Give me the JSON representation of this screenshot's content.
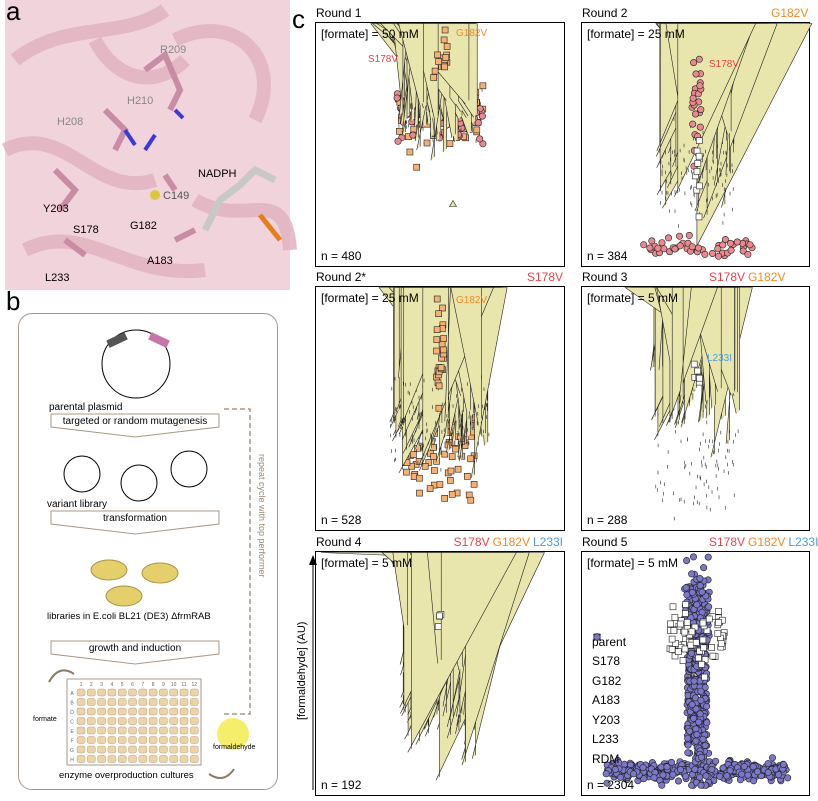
{
  "panels": {
    "a": "a",
    "b": "b",
    "c": "c"
  },
  "panel_a": {
    "residues": [
      "R209",
      "H210",
      "H208",
      "C149",
      "NADPH",
      "Y203",
      "S178",
      "G182",
      "A183",
      "L233"
    ]
  },
  "panel_b": {
    "parental_plasmid": "parental plasmid",
    "step1": "targeted or random mutagenesis",
    "variant_library": "variant library",
    "step2": "transformation",
    "libraries": "libraries in E.coli BL21 (DE3) ΔfrmRAB",
    "step3": "growth and induction",
    "formate": "formate",
    "formaldehyde": "formaldehyde",
    "cultures": "enzyme overproduction cultures",
    "repeat": "repeat cycle with top performer",
    "plate_cols": [
      "1",
      "2",
      "3",
      "4",
      "5",
      "6",
      "7",
      "8",
      "9",
      "10",
      "11",
      "12"
    ],
    "plate_rows": [
      "A",
      "B",
      "D",
      "C",
      "E",
      "F",
      "G",
      "H"
    ]
  },
  "chart_data": {
    "type": "scatter",
    "ylabel": "[formaldehyde] (AU)",
    "groups": [
      {
        "name": "parent",
        "marker": "square",
        "color": "#ffffff"
      },
      {
        "name": "S178",
        "marker": "circle",
        "color": "#e8898e"
      },
      {
        "name": "G182",
        "marker": "square",
        "color": "#f5b072"
      },
      {
        "name": "A183",
        "marker": "triangle-up",
        "color": "#e9e6ad"
      },
      {
        "name": "Y203",
        "marker": "triangle-down",
        "color": "#8fd690"
      },
      {
        "name": "L233",
        "marker": "diamond",
        "color": "#7fa6d9"
      },
      {
        "name": "RDM",
        "marker": "circle",
        "color": "#7b77c9"
      }
    ],
    "legend_labels": [
      "parent",
      "S178",
      "G182",
      "A183",
      "Y203",
      "L233",
      "RDM"
    ],
    "rounds": [
      {
        "title": "Round 1",
        "condition": "[formate] = 50 mM",
        "n_label": "n = 480",
        "header": [],
        "annotations": [
          {
            "text": "G182V",
            "color": "#f08a24"
          },
          {
            "text": "S178V",
            "color": "#e8424a"
          }
        ],
        "clusters": [
          [
            "G182",
            60,
            0.62,
            0.08,
            0.35
          ],
          [
            "S178",
            70,
            0.6,
            0.06,
            0.35
          ],
          [
            "L233",
            130,
            0.63,
            0.05,
            0.34
          ],
          [
            "Y203",
            100,
            0.63,
            0.05,
            0.3
          ],
          [
            "A183",
            90,
            0.63,
            0.07,
            0.3
          ],
          [
            "G182",
            15,
            0.85,
            0.04,
            0.06
          ]
        ]
      },
      {
        "title": "Round 2",
        "condition": "[formate] = 25 mM",
        "n_label": "n = 384",
        "header": [
          {
            "text": "G182V",
            "color": "#f08a24"
          }
        ],
        "annotations": [
          {
            "text": "S178V",
            "color": "#e8424a"
          }
        ],
        "clusters": [
          [
            "Y203",
            80,
            0.45,
            0.1,
            0.3
          ],
          [
            "A183",
            60,
            0.45,
            0.12,
            0.3
          ],
          [
            "L233",
            90,
            0.35,
            0.1,
            0.3
          ],
          [
            "S178",
            50,
            0.08,
            0.02,
            0.45
          ],
          [
            "S178",
            25,
            0.65,
            0.12,
            0.05
          ],
          [
            "parent",
            10,
            0.4,
            0.08,
            0.02
          ]
        ]
      },
      {
        "title": "Round 2*",
        "condition": "[formate] = 25 mM",
        "n_label": "n = 528",
        "header": [
          {
            "text": "S178V",
            "color": "#e8424a"
          }
        ],
        "annotations": [
          {
            "text": "G182V",
            "color": "#f08a24"
          }
        ],
        "clusters": [
          [
            "G182",
            120,
            0.42,
            0.13,
            0.28
          ],
          [
            "A183",
            110,
            0.45,
            0.1,
            0.4
          ],
          [
            "L233",
            110,
            0.45,
            0.08,
            0.4
          ],
          [
            "Y203",
            90,
            0.2,
            0.08,
            0.35
          ],
          [
            "G182",
            25,
            0.75,
            0.12,
            0.03
          ]
        ]
      },
      {
        "title": "Round 3",
        "condition": "[formate] = 5 mM",
        "n_label": "n = 288",
        "header": [
          {
            "text": "S178V",
            "color": "#e8424a"
          },
          {
            "text": "G182V",
            "color": "#f08a24"
          }
        ],
        "annotations": [
          {
            "text": "L233I",
            "color": "#4a9ee0"
          }
        ],
        "clusters": [
          [
            "A183",
            70,
            0.55,
            0.09,
            0.35
          ],
          [
            "Y203",
            90,
            0.22,
            0.06,
            0.45
          ],
          [
            "L233",
            80,
            0.25,
            0.1,
            0.35
          ],
          [
            "parent",
            6,
            0.63,
            0.03,
            0.03
          ]
        ]
      },
      {
        "title": "Round 4",
        "condition": "[formate] = 5 mM",
        "n_label": "n = 192",
        "header": [
          {
            "text": "S178V",
            "color": "#e8424a"
          },
          {
            "text": "G182V",
            "color": "#f08a24"
          },
          {
            "text": "L233I",
            "color": "#4a9ee0"
          }
        ],
        "annotations": [],
        "clusters": [
          [
            "A183",
            100,
            0.38,
            0.13,
            0.3
          ],
          [
            "Y203",
            90,
            0.25,
            0.12,
            0.3
          ],
          [
            "parent",
            4,
            0.7,
            0.04,
            0.02
          ]
        ]
      },
      {
        "title": "Round 5",
        "condition": "[formate] = 5 mM",
        "n_label": "n = 2304",
        "header": [
          {
            "text": "S178V",
            "color": "#e8424a"
          },
          {
            "text": "G182V",
            "color": "#f08a24"
          },
          {
            "text": "L233I",
            "color": "#4a9ee0"
          }
        ],
        "annotations": [],
        "clusters": [
          [
            "RDM",
            350,
            0.1,
            0.02,
            0.75
          ],
          [
            "RDM",
            400,
            0.45,
            0.18,
            0.08
          ],
          [
            "RDM",
            120,
            0.75,
            0.08,
            0.1
          ],
          [
            "parent",
            70,
            0.65,
            0.06,
            0.22
          ]
        ]
      }
    ]
  }
}
